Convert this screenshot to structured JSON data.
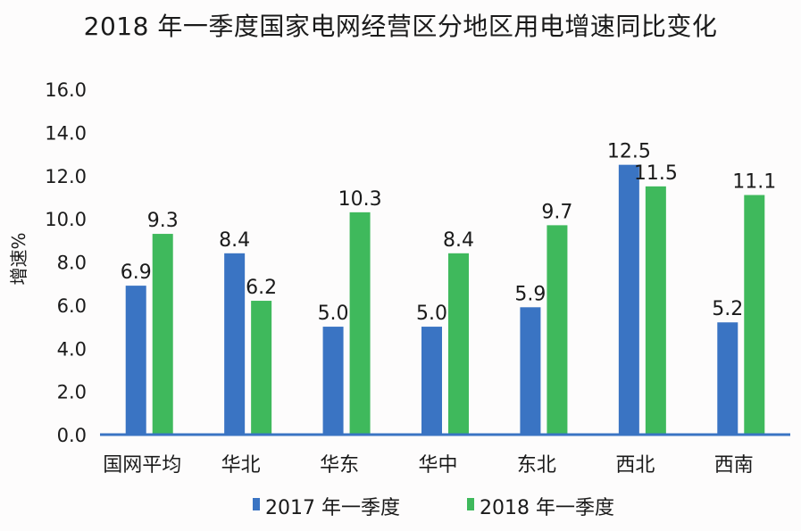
{
  "chart_data": {
    "type": "bar",
    "title": "2018 年一季度国家电网经营区分地区用电增速同比变化",
    "ylabel": "增速%",
    "xlabel": "",
    "ylim": [
      0,
      16
    ],
    "yticks": [
      "0.0",
      "2.0",
      "4.0",
      "6.0",
      "8.0",
      "10.0",
      "12.0",
      "14.0",
      "16.0"
    ],
    "grid": false,
    "legend_position": "bottom",
    "categories": [
      "国网平均",
      "华北",
      "华东",
      "华中",
      "东北",
      "西北",
      "西南"
    ],
    "series": [
      {
        "name": "2017 年一季度",
        "color": "#3a74c3",
        "values": [
          6.9,
          8.4,
          5.0,
          5.0,
          5.9,
          12.5,
          5.2
        ],
        "labels": [
          "6.9",
          "8.4",
          "5.0",
          "5.0",
          "5.9",
          "12.5",
          "5.2"
        ]
      },
      {
        "name": "2018 年一季度",
        "color": "#3fb95c",
        "values": [
          9.3,
          6.2,
          10.3,
          8.4,
          9.7,
          11.5,
          11.1
        ],
        "labels": [
          "9.3",
          "6.2",
          "10.3",
          "8.4",
          "9.7",
          "11.5",
          "11.1"
        ]
      }
    ]
  }
}
